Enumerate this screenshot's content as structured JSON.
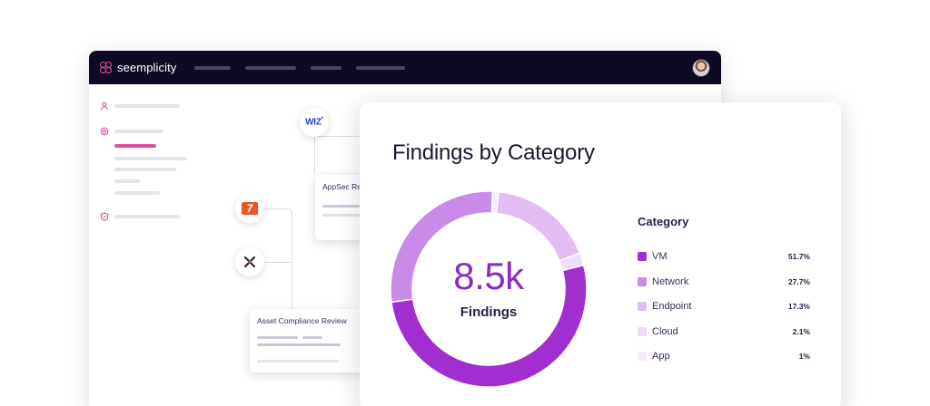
{
  "app": {
    "brand": "seemplicity",
    "colors": {
      "topbar": "#0f0a24",
      "accent": "#e0509e",
      "chart_primary": "#8b2cc4"
    }
  },
  "integrations": [
    {
      "icon": "wiz-logo-icon",
      "label": "WIZ"
    },
    {
      "icon": "seven-logo-icon",
      "label": "7"
    },
    {
      "icon": "cross-logo-icon",
      "label": ""
    }
  ],
  "cards": {
    "appsec": {
      "title": "AppSec Review"
    },
    "asset": {
      "title": "Asset Compliance Review"
    }
  },
  "findings": {
    "title": "Findings by Category",
    "total_display": "8.5k",
    "total_label": "Findings",
    "legend_title": "Category"
  },
  "chart_data": {
    "type": "pie",
    "title": "Findings by Category",
    "donut": true,
    "center_value": "8.5k",
    "center_label": "Findings",
    "legend_title": "Category",
    "legend_placement": "right",
    "categories": [
      "VM",
      "Network",
      "Endpoint",
      "Cloud",
      "App"
    ],
    "values": [
      51.7,
      27.7,
      17.3,
      2.1,
      1.0
    ],
    "value_labels": [
      "51.7%",
      "27.7%",
      "17.3%",
      "2.1%",
      "1%"
    ],
    "colors": [
      "#a12fcf",
      "#c98ae8",
      "#e2bdf3",
      "#efdcf8",
      "#f7ecfb"
    ]
  }
}
